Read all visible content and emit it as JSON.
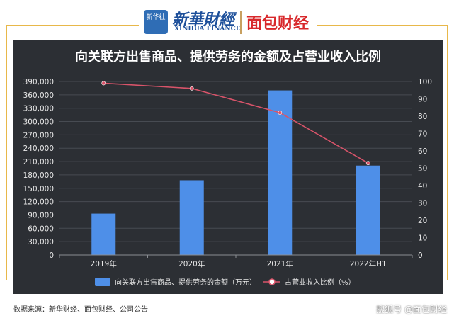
{
  "header": {
    "logo_xinhua_box": "新华社",
    "logo_xinhua_text": "新華財經",
    "logo_xinhua_sub": "XINHUA FINANCE",
    "logo_mianbao": "面包财经"
  },
  "colors": {
    "panel_bg": "#2c2f34",
    "bar": "#4e8fe8",
    "line": "#d9546a",
    "accent_gold": "#e8b84a"
  },
  "footer": {
    "source": "数据来源：新华财经、面包财经、公司公告",
    "watermark": "搜狐号 @面包财经"
  },
  "chart_data": {
    "type": "bar",
    "title": "向关联方出售商品、提供劳务的金额及占营业收入比例",
    "categories": [
      "2019年",
      "2020年",
      "2021年",
      "2022年H1"
    ],
    "series": [
      {
        "name": "向关联方出售商品、提供劳务的金额（万元）",
        "type": "bar",
        "axis": "left",
        "values": [
          93000,
          168000,
          370000,
          201000
        ]
      },
      {
        "name": "占营业收入比例（%）",
        "type": "line",
        "axis": "right",
        "values": [
          99,
          96,
          82,
          53
        ]
      }
    ],
    "left_axis": {
      "ylim": [
        0,
        390000
      ],
      "ticks": [
        "0",
        "30,000",
        "60,000",
        "90,000",
        "120,000",
        "150,000",
        "180,000",
        "210,000",
        "240,000",
        "270,000",
        "300,000",
        "330,000",
        "360,000",
        "390,000"
      ]
    },
    "right_axis": {
      "ylim": [
        0,
        100
      ],
      "ticks": [
        "0",
        "10",
        "20",
        "30",
        "40",
        "50",
        "60",
        "70",
        "80",
        "90",
        "100"
      ]
    },
    "grid": true,
    "legend": "bottom"
  }
}
